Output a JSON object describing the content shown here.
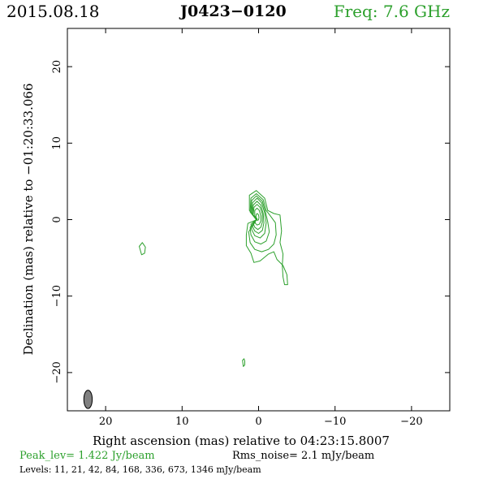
{
  "header": {
    "date": "2015.08.18",
    "source": "J0423−0120",
    "frequency": "Freq: 7.6 GHz"
  },
  "footer": {
    "peak_label": "Peak_lev=",
    "peak_value": "1.422 Jy/beam",
    "rms_label": "Rms_noise=",
    "rms_value": "2.1 mJy/beam",
    "levels_label": "Levels:",
    "levels_value": "11,  21,  42,  84, 168, 336, 673, 1346 mJy/beam"
  },
  "colors": {
    "contour": "#2ca02c",
    "beam": "#808080",
    "frame": "#000000"
  },
  "chart_data": {
    "type": "contour",
    "xlabel": "Right ascension (mas) relative to 04:23:15.8007",
    "ylabel": "Declination (mas) relative to −01:20:33.066",
    "xlim": [
      25,
      -25
    ],
    "ylim": [
      -25,
      25
    ],
    "xticks": [
      20,
      10,
      0,
      -10,
      -20
    ],
    "yticks": [
      20,
      10,
      0,
      -10,
      -20
    ],
    "xtick_labels": [
      "20",
      "10",
      "0",
      "−10",
      "−20"
    ],
    "ytick_labels": [
      "20",
      "10",
      "0",
      "−10",
      "−20"
    ],
    "levels_mJy": [
      11,
      21,
      42,
      84,
      168,
      336,
      673,
      1346
    ],
    "peak_Jy_per_beam": 1.422,
    "rms_mJy_per_beam": 2.1,
    "beam": {
      "x": 22.3,
      "y": -23.5,
      "major_mas": 2.4,
      "minor_mas": 1.1,
      "pa_deg": 0
    },
    "contours": [
      [
        [
          0.2,
          0
        ],
        [
          1.2,
          1.2
        ],
        [
          1.2,
          3.2
        ],
        [
          0.3,
          3.8
        ],
        [
          -0.8,
          2.8
        ],
        [
          -1.2,
          1.2
        ],
        [
          -2,
          0.8
        ],
        [
          -2.8,
          0.6
        ],
        [
          -3,
          -1.5
        ],
        [
          -2.8,
          -3
        ],
        [
          -3.2,
          -4.5
        ],
        [
          -3.1,
          -6
        ],
        [
          -3.2,
          -7.5
        ],
        [
          -3.4,
          -8.5
        ],
        [
          -3.8,
          -8.5
        ],
        [
          -3.7,
          -7.2
        ],
        [
          -3.2,
          -6
        ],
        [
          -2.4,
          -5.2
        ],
        [
          -2,
          -4.2
        ],
        [
          -1.3,
          -4.5
        ],
        [
          -0.2,
          -5.4
        ],
        [
          0.6,
          -5.6
        ],
        [
          1,
          -4.4
        ],
        [
          1.6,
          -3.4
        ],
        [
          1.6,
          -2
        ],
        [
          1.4,
          -0.5
        ]
      ],
      [
        [
          0.3,
          0
        ],
        [
          1.1,
          1
        ],
        [
          1.0,
          2.8
        ],
        [
          0.3,
          3.4
        ],
        [
          -0.6,
          2.6
        ],
        [
          -1,
          1.2
        ],
        [
          -1.6,
          0.4
        ],
        [
          -2.2,
          -0.4
        ],
        [
          -2.3,
          -2
        ],
        [
          -2,
          -3.2
        ],
        [
          -1.3,
          -3.9
        ],
        [
          -0.4,
          -4.2
        ],
        [
          0.5,
          -3.9
        ],
        [
          1.1,
          -3
        ],
        [
          1.3,
          -1.6
        ]
      ],
      [
        [
          0.3,
          0
        ],
        [
          1,
          0.9
        ],
        [
          0.9,
          2.5
        ],
        [
          0.3,
          3.1
        ],
        [
          -0.5,
          2.4
        ],
        [
          -0.9,
          1
        ],
        [
          -1.2,
          -0.3
        ],
        [
          -1.4,
          -1.6
        ],
        [
          -1,
          -2.8
        ],
        [
          -0.3,
          -3.2
        ],
        [
          0.5,
          -2.9
        ],
        [
          1,
          -2
        ],
        [
          1.1,
          -1
        ]
      ],
      [
        [
          0.3,
          0
        ],
        [
          0.9,
          0.8
        ],
        [
          0.8,
          2.2
        ],
        [
          0.2,
          2.8
        ],
        [
          -0.4,
          2.2
        ],
        [
          -0.8,
          0.9
        ],
        [
          -1,
          -0.4
        ],
        [
          -0.8,
          -1.8
        ],
        [
          -0.2,
          -2.4
        ],
        [
          0.5,
          -2.1
        ],
        [
          0.9,
          -1.3
        ],
        [
          1,
          -0.6
        ]
      ],
      [
        [
          0.3,
          0
        ],
        [
          0.8,
          0.7
        ],
        [
          0.7,
          1.9
        ],
        [
          0.2,
          2.4
        ],
        [
          -0.3,
          1.9
        ],
        [
          -0.6,
          0.8
        ],
        [
          -0.7,
          -0.4
        ],
        [
          -0.5,
          -1.4
        ],
        [
          0,
          -1.8
        ],
        [
          0.5,
          -1.5
        ],
        [
          0.8,
          -0.9
        ]
      ],
      [
        [
          0.2,
          0
        ],
        [
          0.7,
          0.6
        ],
        [
          0.6,
          1.6
        ],
        [
          0.2,
          2
        ],
        [
          -0.2,
          1.6
        ],
        [
          -0.5,
          0.7
        ],
        [
          -0.5,
          -0.3
        ],
        [
          -0.3,
          -1
        ],
        [
          0.1,
          -1.3
        ],
        [
          0.5,
          -1
        ],
        [
          0.7,
          -0.5
        ]
      ],
      [
        [
          0.2,
          0.1
        ],
        [
          0.5,
          0.5
        ],
        [
          0.5,
          1.2
        ],
        [
          0.2,
          1.5
        ],
        [
          -0.1,
          1.2
        ],
        [
          -0.3,
          0.5
        ],
        [
          -0.3,
          -0.2
        ],
        [
          -0.1,
          -0.6
        ],
        [
          0.2,
          -0.7
        ],
        [
          0.4,
          -0.5
        ],
        [
          0.5,
          -0.2
        ]
      ],
      [
        [
          0.2,
          0.1
        ],
        [
          0.35,
          0.35
        ],
        [
          0.3,
          0.7
        ],
        [
          0.15,
          0.8
        ],
        [
          0,
          0.6
        ],
        [
          -0.05,
          0.3
        ],
        [
          0,
          0
        ],
        [
          0.1,
          -0.1
        ],
        [
          0.25,
          -0.05
        ]
      ],
      [
        [
          15.2,
          -3
        ],
        [
          15.6,
          -3.5
        ],
        [
          15.3,
          -4.6
        ],
        [
          14.9,
          -4.4
        ],
        [
          14.8,
          -3.6
        ]
      ],
      [
        [
          1.9,
          -18.2
        ],
        [
          2.1,
          -18.4
        ],
        [
          2,
          -19.2
        ],
        [
          1.8,
          -19
        ],
        [
          1.8,
          -18.5
        ]
      ]
    ]
  }
}
